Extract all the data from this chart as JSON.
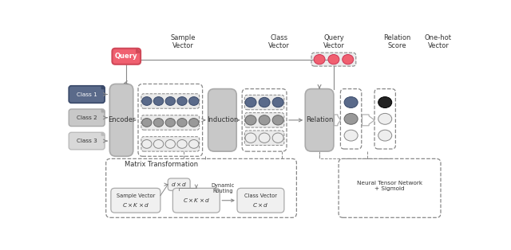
{
  "bg_color": "#ffffff",
  "fig_width": 6.4,
  "fig_height": 3.14,
  "dpi": 100,
  "colors": {
    "query_box": "#f06070",
    "query_fold": "#d04858",
    "query_text": "#ffffff",
    "class1_box": "#5a6a8a",
    "class1_fold": "#3a4a6a",
    "class1_text": "#ffffff",
    "class2_box": "#c8c8c8",
    "class2_fold": "#aaaaaa",
    "class2_text": "#333333",
    "class3_box": "#d8d8d8",
    "class3_fold": "#bbbbbb",
    "class3_text": "#333333",
    "main_block": "#c8c8c8",
    "main_block_ec": "#aaaaaa",
    "blue_circle": "#5a6a8a",
    "blue_circle_ec": "#3a4a6a",
    "gray_circle": "#999999",
    "gray_circle_ec": "#666666",
    "white_circle": "#eeeeee",
    "white_circle_ec": "#888888",
    "pink_circle": "#f06070",
    "pink_circle_ec": "#cc3355",
    "black_circle": "#222222",
    "black_circle_ec": "#000000",
    "dashed_ec": "#888888",
    "dashed_fc": "none",
    "inner_box_fc": "#ebebeb",
    "arrow_color": "#888888",
    "fat_arrow_fc": "#ffffff",
    "fat_arrow_ec": "#aaaaaa",
    "text_color": "#333333",
    "bottom_box_fc": "#f0f0f0",
    "bottom_box_ec": "#aaaaaa"
  },
  "labels": {
    "query": "Query",
    "class1": "Class 1",
    "class2": "Class 2",
    "class3": "Class 3",
    "encoder": "Encoder",
    "sample_vector": "Sample\nVector",
    "induction": "Induction",
    "class_vector": "Class\nVector",
    "query_vector": "Query\nVector",
    "relation": "Relation",
    "relation_score": "Relation\nScore",
    "one_hot": "One-hot\nVector",
    "matrix_trans": "Matrix Transformation",
    "dynamic_routing": "Dynamic\nRouting",
    "ntn": "Neural Tensor Network\n+ Sigmoid",
    "dxd": "$d \\times d$",
    "ckd": "$C \\times K \\times d$",
    "cd": "$C \\times d$"
  },
  "fontsizes": {
    "title": 7.0,
    "label": 6.0,
    "small": 5.2,
    "tiny": 4.8
  }
}
